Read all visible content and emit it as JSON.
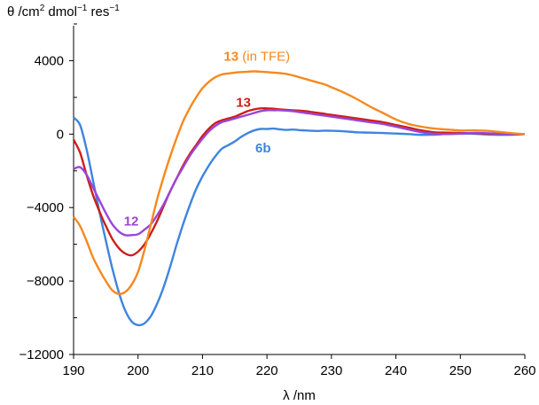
{
  "chart_data": {
    "type": "line",
    "ylabel": "θ /cm² dmol⁻¹ res⁻¹",
    "ylabel_parts": {
      "pre": "θ /cm",
      "sup1": "2",
      "mid": " dmol",
      "sup2": "−1",
      "mid2": " res",
      "sup3": "−1"
    },
    "xlabel": "λ /nm",
    "xlim": [
      190,
      260
    ],
    "ylim": [
      -12000,
      6000
    ],
    "xticks": [
      190,
      200,
      210,
      220,
      230,
      240,
      250,
      260
    ],
    "yticks": [
      -12000,
      -8000,
      -4000,
      0,
      4000
    ],
    "grid": false,
    "series": [
      {
        "name": "6b",
        "color": "#3d85e0",
        "x": [
          190,
          191,
          192,
          193,
          194,
          195,
          196,
          197,
          198,
          199,
          200,
          201,
          202,
          203,
          204,
          205,
          206,
          207,
          208,
          209,
          210,
          211,
          212,
          213,
          214,
          215,
          216,
          217,
          218,
          219,
          220,
          221,
          222,
          223,
          224,
          225,
          226,
          227,
          228,
          229,
          230,
          232,
          234,
          236,
          238,
          240,
          242,
          244,
          246,
          248,
          250,
          252,
          254,
          256,
          258,
          260
        ],
        "y": [
          900,
          500,
          -800,
          -2500,
          -4200,
          -5800,
          -7300,
          -8600,
          -9600,
          -10200,
          -10400,
          -10300,
          -9900,
          -9200,
          -8300,
          -7200,
          -6000,
          -4900,
          -3900,
          -3000,
          -2300,
          -1700,
          -1200,
          -800,
          -600,
          -400,
          -150,
          50,
          200,
          280,
          280,
          300,
          260,
          230,
          250,
          220,
          200,
          180,
          170,
          190,
          180,
          150,
          100,
          80,
          60,
          30,
          0,
          -40,
          -30,
          10,
          20,
          20,
          -20,
          -40,
          -30,
          0
        ]
      },
      {
        "name": "13",
        "color": "#cc1f1a",
        "x": [
          190,
          191,
          192,
          193,
          194,
          195,
          196,
          197,
          198,
          199,
          200,
          201,
          202,
          203,
          204,
          205,
          206,
          207,
          208,
          209,
          210,
          211,
          212,
          213,
          214,
          215,
          216,
          217,
          218,
          219,
          220,
          221,
          222,
          223,
          224,
          225,
          226,
          227,
          228,
          229,
          230,
          232,
          234,
          236,
          238,
          240,
          242,
          244,
          246,
          248,
          250,
          252,
          254,
          256,
          258,
          260
        ],
        "y": [
          -300,
          -1000,
          -2200,
          -3300,
          -4200,
          -5000,
          -5700,
          -6200,
          -6500,
          -6600,
          -6400,
          -6000,
          -5400,
          -4700,
          -3900,
          -3100,
          -2400,
          -1700,
          -1100,
          -600,
          -100,
          300,
          600,
          750,
          850,
          950,
          1100,
          1250,
          1350,
          1400,
          1400,
          1380,
          1350,
          1320,
          1300,
          1280,
          1250,
          1200,
          1150,
          1100,
          1050,
          950,
          850,
          750,
          650,
          500,
          350,
          200,
          100,
          80,
          60,
          50,
          20,
          10,
          -10,
          0
        ]
      },
      {
        "name": "12",
        "color": "#9b45d8",
        "x": [
          190,
          191,
          192,
          193,
          194,
          195,
          196,
          197,
          198,
          199,
          200,
          201,
          202,
          203,
          204,
          205,
          206,
          207,
          208,
          209,
          210,
          211,
          212,
          213,
          214,
          215,
          216,
          217,
          218,
          219,
          220,
          221,
          222,
          223,
          224,
          225,
          226,
          227,
          228,
          229,
          230,
          232,
          234,
          236,
          238,
          240,
          242,
          244,
          246,
          248,
          250,
          252,
          254,
          256,
          258,
          260
        ],
        "y": [
          -1900,
          -1800,
          -2200,
          -2900,
          -3600,
          -4300,
          -4900,
          -5300,
          -5500,
          -5500,
          -5450,
          -5200,
          -4900,
          -4400,
          -3800,
          -3100,
          -2400,
          -1800,
          -1200,
          -700,
          -250,
          150,
          450,
          650,
          750,
          850,
          950,
          1050,
          1150,
          1250,
          1300,
          1300,
          1300,
          1280,
          1250,
          1200,
          1150,
          1100,
          1050,
          1000,
          950,
          850,
          750,
          650,
          550,
          400,
          250,
          100,
          20,
          0,
          30,
          60,
          50,
          20,
          -10,
          0
        ]
      },
      {
        "name": "13 (in TFE)",
        "color": "#f5891f",
        "x": [
          190,
          191,
          192,
          193,
          194,
          195,
          196,
          197,
          198,
          199,
          200,
          201,
          202,
          203,
          204,
          205,
          206,
          207,
          208,
          209,
          210,
          211,
          212,
          213,
          214,
          215,
          216,
          217,
          218,
          219,
          220,
          221,
          222,
          223,
          224,
          225,
          226,
          227,
          228,
          229,
          230,
          232,
          234,
          236,
          238,
          240,
          242,
          244,
          246,
          248,
          250,
          252,
          254,
          256,
          258,
          260
        ],
        "y": [
          -4500,
          -5000,
          -5800,
          -6700,
          -7400,
          -8000,
          -8500,
          -8700,
          -8600,
          -8200,
          -7500,
          -6300,
          -4900,
          -3500,
          -2300,
          -1200,
          -200,
          700,
          1400,
          2000,
          2500,
          2850,
          3100,
          3250,
          3300,
          3350,
          3380,
          3400,
          3420,
          3400,
          3380,
          3350,
          3320,
          3280,
          3200,
          3100,
          3000,
          2900,
          2800,
          2700,
          2550,
          2250,
          1900,
          1500,
          1150,
          800,
          550,
          400,
          300,
          250,
          200,
          200,
          180,
          120,
          50,
          0
        ]
      }
    ],
    "annotations": [
      {
        "series": "13 (in TFE)",
        "bold": "13",
        "normal": " (in TFE)",
        "x": 213.3,
        "y": 4000,
        "color": "#f5891f"
      },
      {
        "series": "13",
        "bold": "13",
        "normal": "",
        "x": 215.2,
        "y": 1480,
        "color": "#cc1f1a"
      },
      {
        "series": "6b",
        "bold": "6b",
        "normal": "",
        "x": 218.2,
        "y": -1000,
        "color": "#3d85e0"
      },
      {
        "series": "12",
        "bold": "12",
        "normal": "",
        "x": 197.8,
        "y": -4980,
        "color": "#9b45d8"
      }
    ]
  }
}
